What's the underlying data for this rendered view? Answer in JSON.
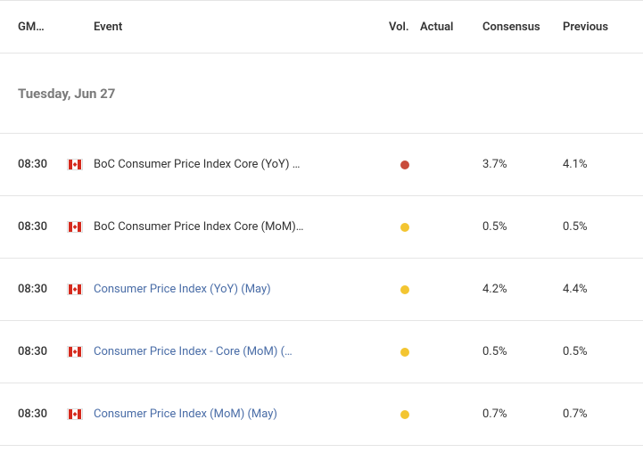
{
  "headers": {
    "gmt": "GM…",
    "event": "Event",
    "vol": "Vol.",
    "actual": "Actual",
    "consensus": "Consensus",
    "previous": "Previous"
  },
  "date_label": "Tuesday, Jun 27",
  "colors": {
    "vol_high": "#c94b3b",
    "vol_med": "#f3c531",
    "link": "#4a6da7",
    "border": "#e5e5e5",
    "text": "#333333",
    "muted": "#7a7a7a"
  },
  "rows": [
    {
      "time": "08:30",
      "country": "CA",
      "event": "BoC Consumer Price Index Core (YoY) …",
      "event_is_link": false,
      "vol_color": "#c94b3b",
      "actual": "",
      "consensus": "3.7%",
      "previous": "4.1%"
    },
    {
      "time": "08:30",
      "country": "CA",
      "event": "BoC Consumer Price Index Core (MoM)…",
      "event_is_link": false,
      "vol_color": "#f3c531",
      "actual": "",
      "consensus": "0.5%",
      "previous": "0.5%"
    },
    {
      "time": "08:30",
      "country": "CA",
      "event": "Consumer Price Index (YoY) (May)",
      "event_is_link": true,
      "vol_color": "#f3c531",
      "actual": "",
      "consensus": "4.2%",
      "previous": "4.4%"
    },
    {
      "time": "08:30",
      "country": "CA",
      "event": "Consumer Price Index - Core (MoM) (…",
      "event_is_link": true,
      "vol_color": "#f3c531",
      "actual": "",
      "consensus": "0.5%",
      "previous": "0.5%"
    },
    {
      "time": "08:30",
      "country": "CA",
      "event": "Consumer Price Index (MoM) (May)",
      "event_is_link": true,
      "vol_color": "#f3c531",
      "actual": "",
      "consensus": "0.7%",
      "previous": "0.7%"
    }
  ]
}
